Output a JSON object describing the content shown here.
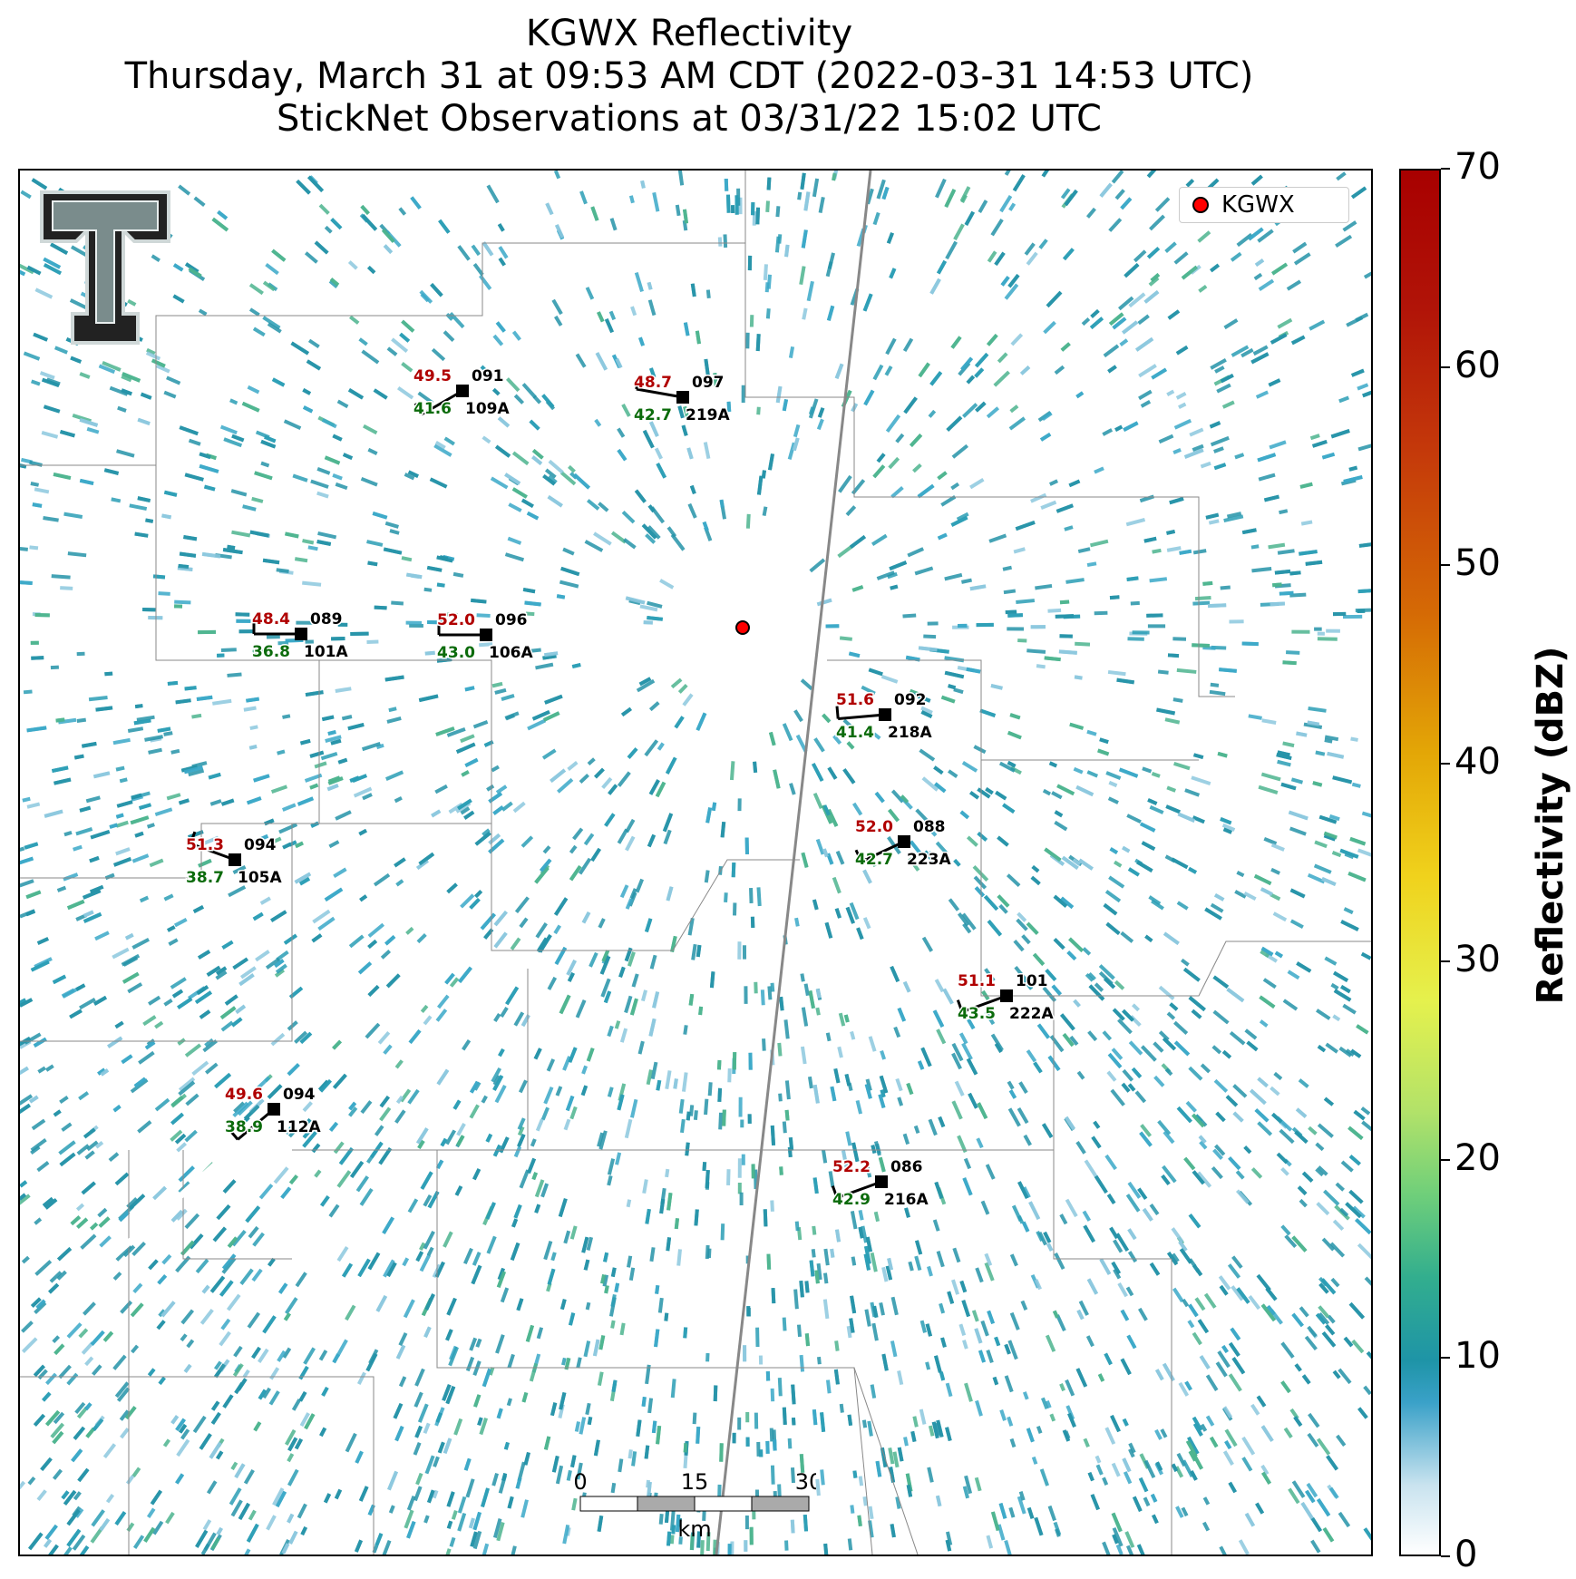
{
  "title": {
    "line1": "KGWX Reflectivity",
    "line2": "Thursday, March 31 at 09:53 AM CDT (2022-03-31 14:53 UTC)",
    "line3": "StickNet Observations at 03/31/22 15:02 UTC"
  },
  "legend": {
    "label": "KGWX",
    "marker_color": "#ff0000"
  },
  "radar_site": {
    "name": "KGWX"
  },
  "colorbar": {
    "label": "Reflectivity (dBZ)",
    "min": 0,
    "max": 70,
    "ticks": [
      "0",
      "10",
      "20",
      "30",
      "40",
      "50",
      "60",
      "70"
    ]
  },
  "scalebar": {
    "ticks": [
      "0",
      "15",
      "30"
    ],
    "unit": "km"
  },
  "stations": [
    {
      "id": "109A",
      "temp": "49.5",
      "dew": "41.6",
      "dir": "091"
    },
    {
      "id": "219A",
      "temp": "48.7",
      "dew": "42.7",
      "dir": "097"
    },
    {
      "id": "101A",
      "temp": "48.4",
      "dew": "36.8",
      "dir": "089"
    },
    {
      "id": "106A",
      "temp": "52.0",
      "dew": "43.0",
      "dir": "096"
    },
    {
      "id": "218A",
      "temp": "51.6",
      "dew": "41.4",
      "dir": "092"
    },
    {
      "id": "223A",
      "temp": "52.0",
      "dew": "42.7",
      "dir": "088"
    },
    {
      "id": "105A",
      "temp": "51.3",
      "dew": "38.7",
      "dir": "094"
    },
    {
      "id": "222A",
      "temp": "51.1",
      "dew": "43.5",
      "dir": "101"
    },
    {
      "id": "112A",
      "temp": "49.6",
      "dew": "38.9",
      "dir": "094"
    },
    {
      "id": "216A",
      "temp": "52.2",
      "dew": "42.9",
      "dir": "086"
    }
  ],
  "colors": {
    "temp": "#b00000",
    "dew": "#0b6b0b",
    "echo": "#2593a8"
  }
}
